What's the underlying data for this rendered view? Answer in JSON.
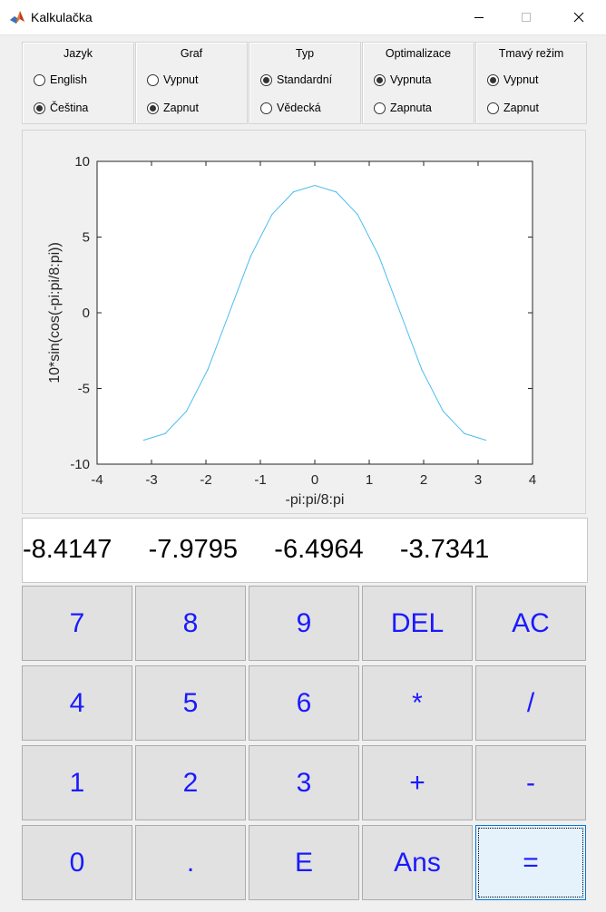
{
  "window": {
    "title": "Kalkulačka",
    "icons": [
      "matlab-icon",
      "minimize-icon",
      "maximize-icon",
      "close-icon"
    ]
  },
  "groups": [
    {
      "title": "Jazyk",
      "options": [
        {
          "label": "English",
          "selected": false
        },
        {
          "label": "Čeština",
          "selected": true
        }
      ]
    },
    {
      "title": "Graf",
      "options": [
        {
          "label": "Vypnut",
          "selected": false
        },
        {
          "label": "Zapnut",
          "selected": true
        }
      ]
    },
    {
      "title": "Typ",
      "options": [
        {
          "label": "Standardní",
          "selected": true
        },
        {
          "label": "Vědecká",
          "selected": false
        }
      ]
    },
    {
      "title": "Optimalizace",
      "options": [
        {
          "label": "Vypnuta",
          "selected": true
        },
        {
          "label": "Zapnuta",
          "selected": false
        }
      ]
    },
    {
      "title": "Tmavý režim",
      "options": [
        {
          "label": "Vypnut",
          "selected": true
        },
        {
          "label": "Zapnut",
          "selected": false
        }
      ]
    }
  ],
  "chart_data": {
    "type": "line",
    "xlabel": "-pi:pi/8:pi",
    "ylabel": "10*sin(cos(-pi:pi/8:pi))",
    "xlim": [
      -4,
      4
    ],
    "ylim": [
      -10,
      10
    ],
    "xticks": [
      "-4",
      "-3",
      "-2",
      "-1",
      "0",
      "1",
      "2",
      "3",
      "4"
    ],
    "yticks": [
      "10",
      "5",
      "0",
      "-5",
      "-10"
    ],
    "line_color": "#4dbeee",
    "series": [
      {
        "x": [
          -3.1416,
          -2.7489,
          -2.3562,
          -1.9635,
          -1.5708,
          -1.1781,
          -0.7854,
          -0.3927,
          0,
          0.3927,
          0.7854,
          1.1781,
          1.5708,
          1.9635,
          2.3562,
          2.7489,
          3.1416
        ],
        "values": [
          -8.4147,
          -7.9795,
          -6.4964,
          -3.7341,
          0,
          3.7341,
          6.4964,
          7.9795,
          8.4147,
          7.9795,
          6.4964,
          3.7341,
          0,
          -3.7341,
          -6.4964,
          -7.9795,
          -8.4147
        ]
      }
    ]
  },
  "display": {
    "text": "-8.4147     -7.9795     -6.4964     -3.7341"
  },
  "keypad": {
    "text_color": "#1a1aff",
    "keys": [
      "7",
      "8",
      "9",
      "DEL",
      "AC",
      "4",
      "5",
      "6",
      "*",
      "/",
      "1",
      "2",
      "3",
      "+",
      "-",
      "0",
      ".",
      "E",
      "Ans",
      "="
    ]
  }
}
